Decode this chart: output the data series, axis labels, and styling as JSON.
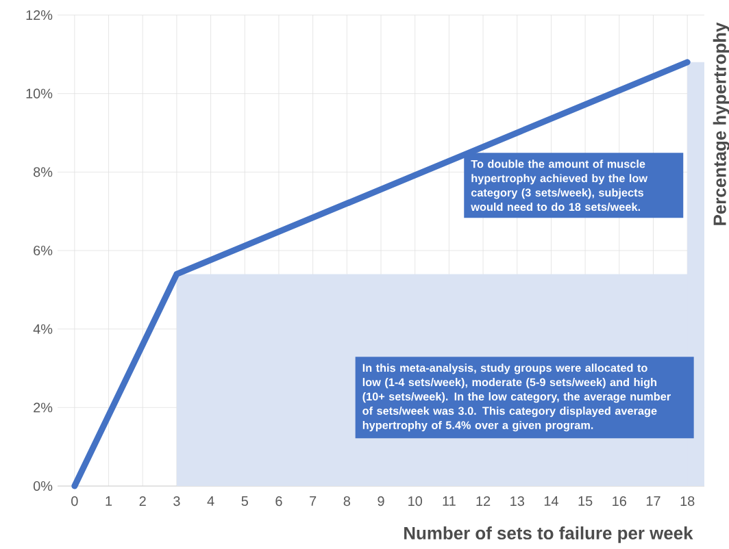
{
  "chart_data": {
    "type": "line",
    "xlabel": "Number of sets to failure per week",
    "ylabel": "Percentage hypertrophy",
    "x": [
      0,
      3,
      18
    ],
    "xlim": [
      -0.5,
      18.5
    ],
    "xticks": [
      0,
      1,
      2,
      3,
      4,
      5,
      6,
      7,
      8,
      9,
      10,
      11,
      12,
      13,
      14,
      15,
      16,
      17,
      18
    ],
    "ylim": [
      0,
      12
    ],
    "yticks": [
      {
        "value": 0,
        "label": "0%"
      },
      {
        "value": 2,
        "label": "2%"
      },
      {
        "value": 4,
        "label": "4%"
      },
      {
        "value": 6,
        "label": "6%"
      },
      {
        "value": 8,
        "label": "8%"
      },
      {
        "value": 10,
        "label": "10%"
      },
      {
        "value": 12,
        "label": "12%"
      }
    ],
    "grid": true,
    "marker": "none",
    "line_style": "solid",
    "series": [
      {
        "type": "area",
        "color": "#dae3f3",
        "x": [
          3,
          18.5
        ],
        "values": [
          5.4,
          5.4
        ]
      },
      {
        "type": "area",
        "color": "#dae3f3",
        "x": [
          18,
          18.5
        ],
        "values": [
          10.8,
          10.8
        ]
      },
      {
        "color": "#4472c4",
        "values": [
          0,
          5.4,
          10.8
        ]
      }
    ],
    "annotations": [
      "To double the amount of muscle hypertrophy achieved by the low category (3 sets/week), subjects would need to do 18 sets/week.",
      "In this meta-analysis, study groups were allocated to low (1-4 sets/week), moderate (5-9 sets/week) and high (10+ sets/week). In the low category, the average number of sets/week was 3.0. This category displayed average hypertrophy of 5.4% over a given program."
    ]
  }
}
